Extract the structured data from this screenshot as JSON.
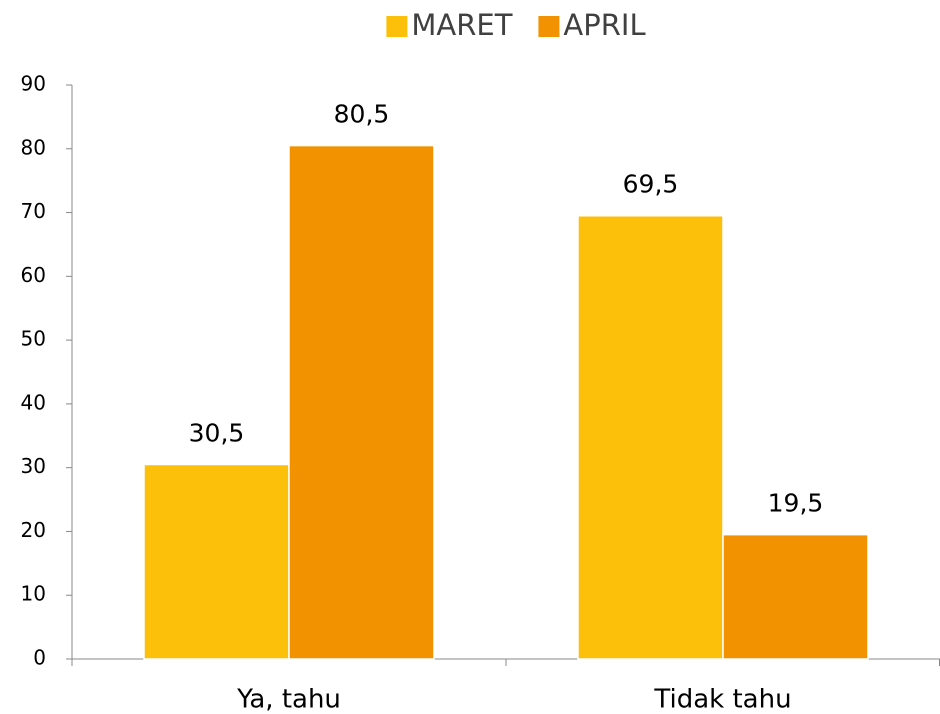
{
  "chart_data": {
    "type": "bar",
    "categories": [
      "Ya, tahu",
      "Tidak tahu"
    ],
    "series": [
      {
        "name": "MARET",
        "color": "#fcbf0a",
        "values": [
          30.5,
          69.5
        ],
        "value_labels": [
          "30,5",
          "69,5"
        ]
      },
      {
        "name": "APRIL",
        "color": "#f39200",
        "values": [
          80.5,
          19.5
        ],
        "value_labels": [
          "80,5",
          "19,5"
        ]
      }
    ],
    "ylim": [
      0,
      90
    ],
    "yticks": [
      0,
      10,
      20,
      30,
      40,
      50,
      60,
      70,
      80,
      90
    ],
    "legend": "top"
  }
}
